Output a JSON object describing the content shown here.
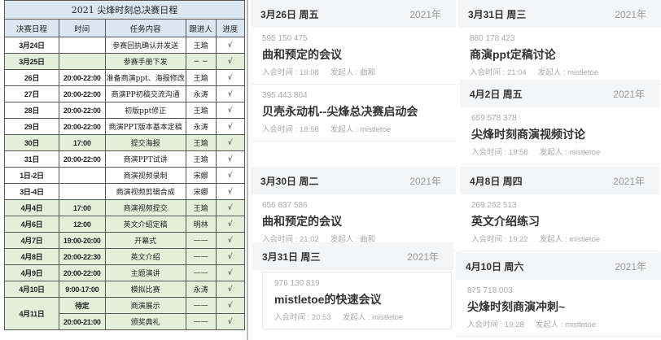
{
  "sheet": {
    "title": "2021 尖烽时刻总决赛日程",
    "headers": [
      "决赛日程",
      "时间",
      "任务内容",
      "跟进人",
      "进度"
    ],
    "rows": [
      {
        "date": "3月24日",
        "time": "",
        "task": "参赛回执确认并发送",
        "person": "王瑜",
        "progress": "√",
        "green": false
      },
      {
        "date": "3月25日",
        "time": "",
        "task": "参赛手册下发",
        "person": "− −",
        "progress": "√",
        "green": true
      },
      {
        "date": "26日",
        "time": "20:00-22:00",
        "task": "准备商演ppt、海报修改",
        "person": "王瑜",
        "progress": "√",
        "green": false
      },
      {
        "date": "27日",
        "time": "20:00-22:00",
        "task": "商演PP初稿交流沟通",
        "person": "永涛",
        "progress": "√",
        "green": false
      },
      {
        "date": "28日",
        "time": "20:00-22:00",
        "task": "初版ppt修正",
        "person": "王瑜",
        "progress": "√",
        "green": false
      },
      {
        "date": "29日",
        "time": "20:00-22:00",
        "task": "商演PPT版本基本定稿",
        "person": "永涛",
        "progress": "√",
        "green": false
      },
      {
        "date": "30日",
        "time": "17:00",
        "task": "提交海报",
        "person": "王瑜",
        "progress": "√",
        "green": true
      },
      {
        "date": "31日",
        "time": "20:00-22:00",
        "task": "商演PPT试讲",
        "person": "王瑜",
        "progress": "√",
        "green": false
      },
      {
        "date": "1日-2日",
        "time": "",
        "task": "商演视频录制",
        "person": "宋娜",
        "progress": "√",
        "green": false
      },
      {
        "date": "3日-4日",
        "time": "",
        "task": "商演视频剪辑合成",
        "person": "宋娜",
        "progress": "√",
        "green": false
      },
      {
        "date": "4月4日",
        "time": "17:00",
        "task": "商演视频提交",
        "person": "王瑜",
        "progress": "√",
        "green": true
      },
      {
        "date": "4月6日",
        "time": "12:00",
        "task": "英文介绍定稿",
        "person": "明林",
        "progress": "√",
        "green": true
      },
      {
        "date": "4月7日",
        "time": "19:00-20:00",
        "task": "开幕式",
        "person": "——",
        "progress": "√",
        "green": true
      },
      {
        "date": "4月8日",
        "time": "20:00-22:30",
        "task": "英文介绍",
        "person": "——",
        "progress": "√",
        "green": true
      },
      {
        "date": "4月9日",
        "time": "20:00-22:00",
        "task": "主题演讲",
        "person": "——",
        "progress": "√",
        "green": true
      },
      {
        "date": "4月10日",
        "time": "9:00-17:00",
        "task": "模拟比赛",
        "person": "永涛",
        "progress": "√",
        "green": true
      },
      {
        "date": "4月11日",
        "time": "待定",
        "task": "商演展示",
        "person": "——",
        "progress": "√",
        "green": true
      },
      {
        "date": "",
        "time": "20:00-21:00",
        "task": "颁奖典礼",
        "person": "——",
        "progress": "√",
        "green": true
      }
    ]
  },
  "labels": {
    "join": "入会时间 : ",
    "host": "发起人 : "
  },
  "panels": [
    {
      "date": "3月26日 周五",
      "year": "2021年",
      "meetings": [
        {
          "id": "595 150 475",
          "title": "曲和预定的会议",
          "time": "19:08",
          "host": "曲和"
        },
        {
          "id": "395 443 804",
          "title": "贝壳永动机--尖烽总决赛启动会",
          "time": "18:58",
          "host": "mistletoe"
        }
      ]
    },
    {
      "date": "3月30日 周二",
      "year": "2021年",
      "meetings": [
        {
          "id": "656 837 586",
          "title": "曲和预定的会议",
          "time": "21:02",
          "host": "曲和"
        }
      ]
    },
    {
      "date": "3月31日 周三",
      "year": "2021年",
      "meetings": [
        {
          "id": "976 130 819",
          "title": "mistletoe的快速会议",
          "time": "20:53",
          "host": "mistletoe"
        }
      ]
    },
    {
      "date": "3月31日 周三",
      "year": "2021年",
      "meetings": [
        {
          "id": "880 178 423",
          "title": "商演ppt定稿讨论",
          "time": "21:04",
          "host": "mistletoe"
        }
      ]
    },
    {
      "date": "4月2日 周五",
      "year": "2021年",
      "meetings": [
        {
          "id": "659 578 378",
          "title": "尖烽时刻商演视频讨论",
          "time": "19:58",
          "host": "mistletoe"
        }
      ]
    },
    {
      "date": "4月8日 周四",
      "year": "2021年",
      "meetings": [
        {
          "id": "269 262 513",
          "title": "英文介绍练习",
          "time": "19:22",
          "host": "mistletoe"
        }
      ]
    },
    {
      "date": "4月10日 周六",
      "year": "2021年",
      "meetings": [
        {
          "id": "875 718 003",
          "title": "尖烽时刻商演冲刺~",
          "time": "19:28",
          "host": "mistletoe"
        }
      ]
    }
  ]
}
